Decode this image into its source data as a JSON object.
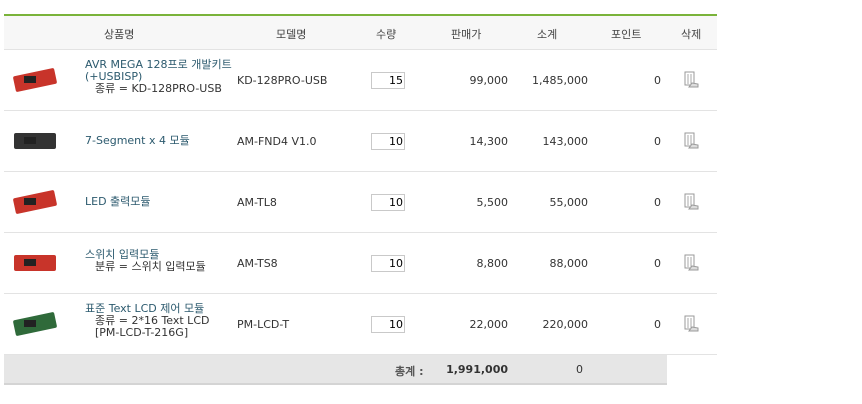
{
  "headers": {
    "name": "상품명",
    "model": "모델명",
    "qty": "수량",
    "price": "판매가",
    "subtotal": "소계",
    "points": "포인트",
    "delete": "삭제"
  },
  "items": [
    {
      "name": "AVR MEGA 128프로 개발키트(+USBISP)",
      "option": "종류 = KD-128PRO-USB",
      "model": "KD-128PRO-USB",
      "qty": "15",
      "price": "99,000",
      "subtotal": "1,485,000",
      "points": "0"
    },
    {
      "name": "7-Segment x 4 모듈",
      "option": "",
      "model": "AM-FND4 V1.0",
      "qty": "10",
      "price": "14,300",
      "subtotal": "143,000",
      "points": "0"
    },
    {
      "name": "LED 출력모듈",
      "option": "",
      "model": "AM-TL8",
      "qty": "10",
      "price": "5,500",
      "subtotal": "55,000",
      "points": "0"
    },
    {
      "name": "스위치 입력모듈",
      "option": "분류 = 스위치 입력모듈",
      "model": "AM-TS8",
      "qty": "10",
      "price": "8,800",
      "subtotal": "88,000",
      "points": "0"
    },
    {
      "name": "표준 Text LCD 제어 모듈",
      "option": "종류 = 2*16 Text LCD [PM-LCD-T-216G]",
      "model": "PM-LCD-T",
      "qty": "10",
      "price": "22,000",
      "subtotal": "220,000",
      "points": "0"
    }
  ],
  "total": {
    "label": "총계 :",
    "amount": "1,991,000",
    "points": "0"
  },
  "colors": {
    "accent": "#7ab33a",
    "link": "#2c5a6e"
  }
}
